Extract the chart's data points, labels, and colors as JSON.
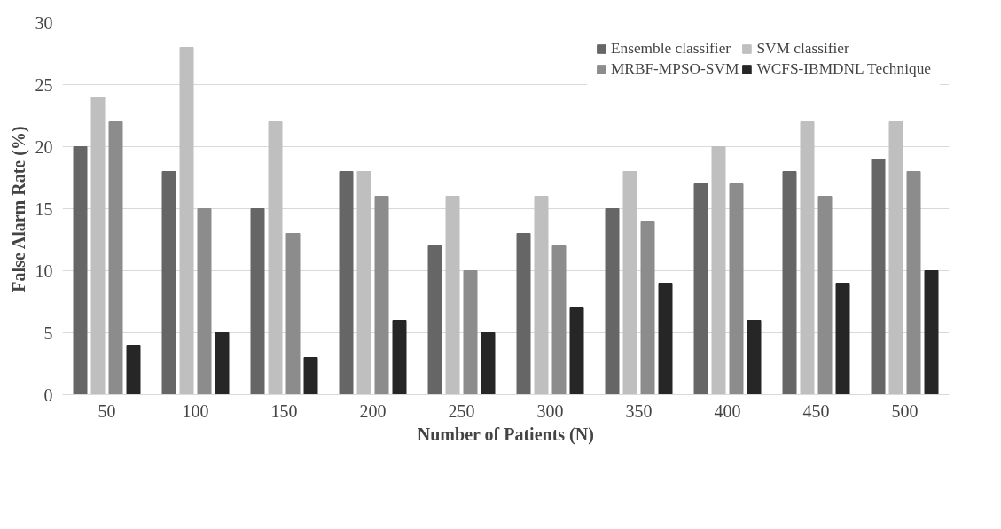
{
  "chart_data": {
    "type": "bar",
    "xlabel": "Number of Patients (N)",
    "ylabel": "False Alarm Rate (%)",
    "categories": [
      "50",
      "100",
      "150",
      "200",
      "250",
      "300",
      "350",
      "400",
      "450",
      "500"
    ],
    "series": [
      {
        "name": "Ensemble classifier",
        "color": "#666666",
        "values": [
          20,
          18,
          15,
          18,
          12,
          13,
          15,
          17,
          18,
          19
        ]
      },
      {
        "name": "SVM classifier",
        "color": "#bfbfbf",
        "values": [
          24,
          28,
          22,
          18,
          16,
          16,
          18,
          20,
          22,
          22
        ]
      },
      {
        "name": "MRBF-MPSO-SVM",
        "color": "#8c8c8c",
        "values": [
          22,
          15,
          13,
          16,
          10,
          12,
          14,
          17,
          16,
          18
        ]
      },
      {
        "name": "WCFS-IBMDNL Technique",
        "color": "#262626",
        "values": [
          4,
          5,
          3,
          6,
          5,
          7,
          9,
          6,
          9,
          10
        ]
      }
    ],
    "ylim": [
      0,
      30
    ],
    "yticks": [
      0,
      5,
      10,
      15,
      20,
      25,
      30
    ],
    "grid": "y",
    "legend": "top"
  }
}
